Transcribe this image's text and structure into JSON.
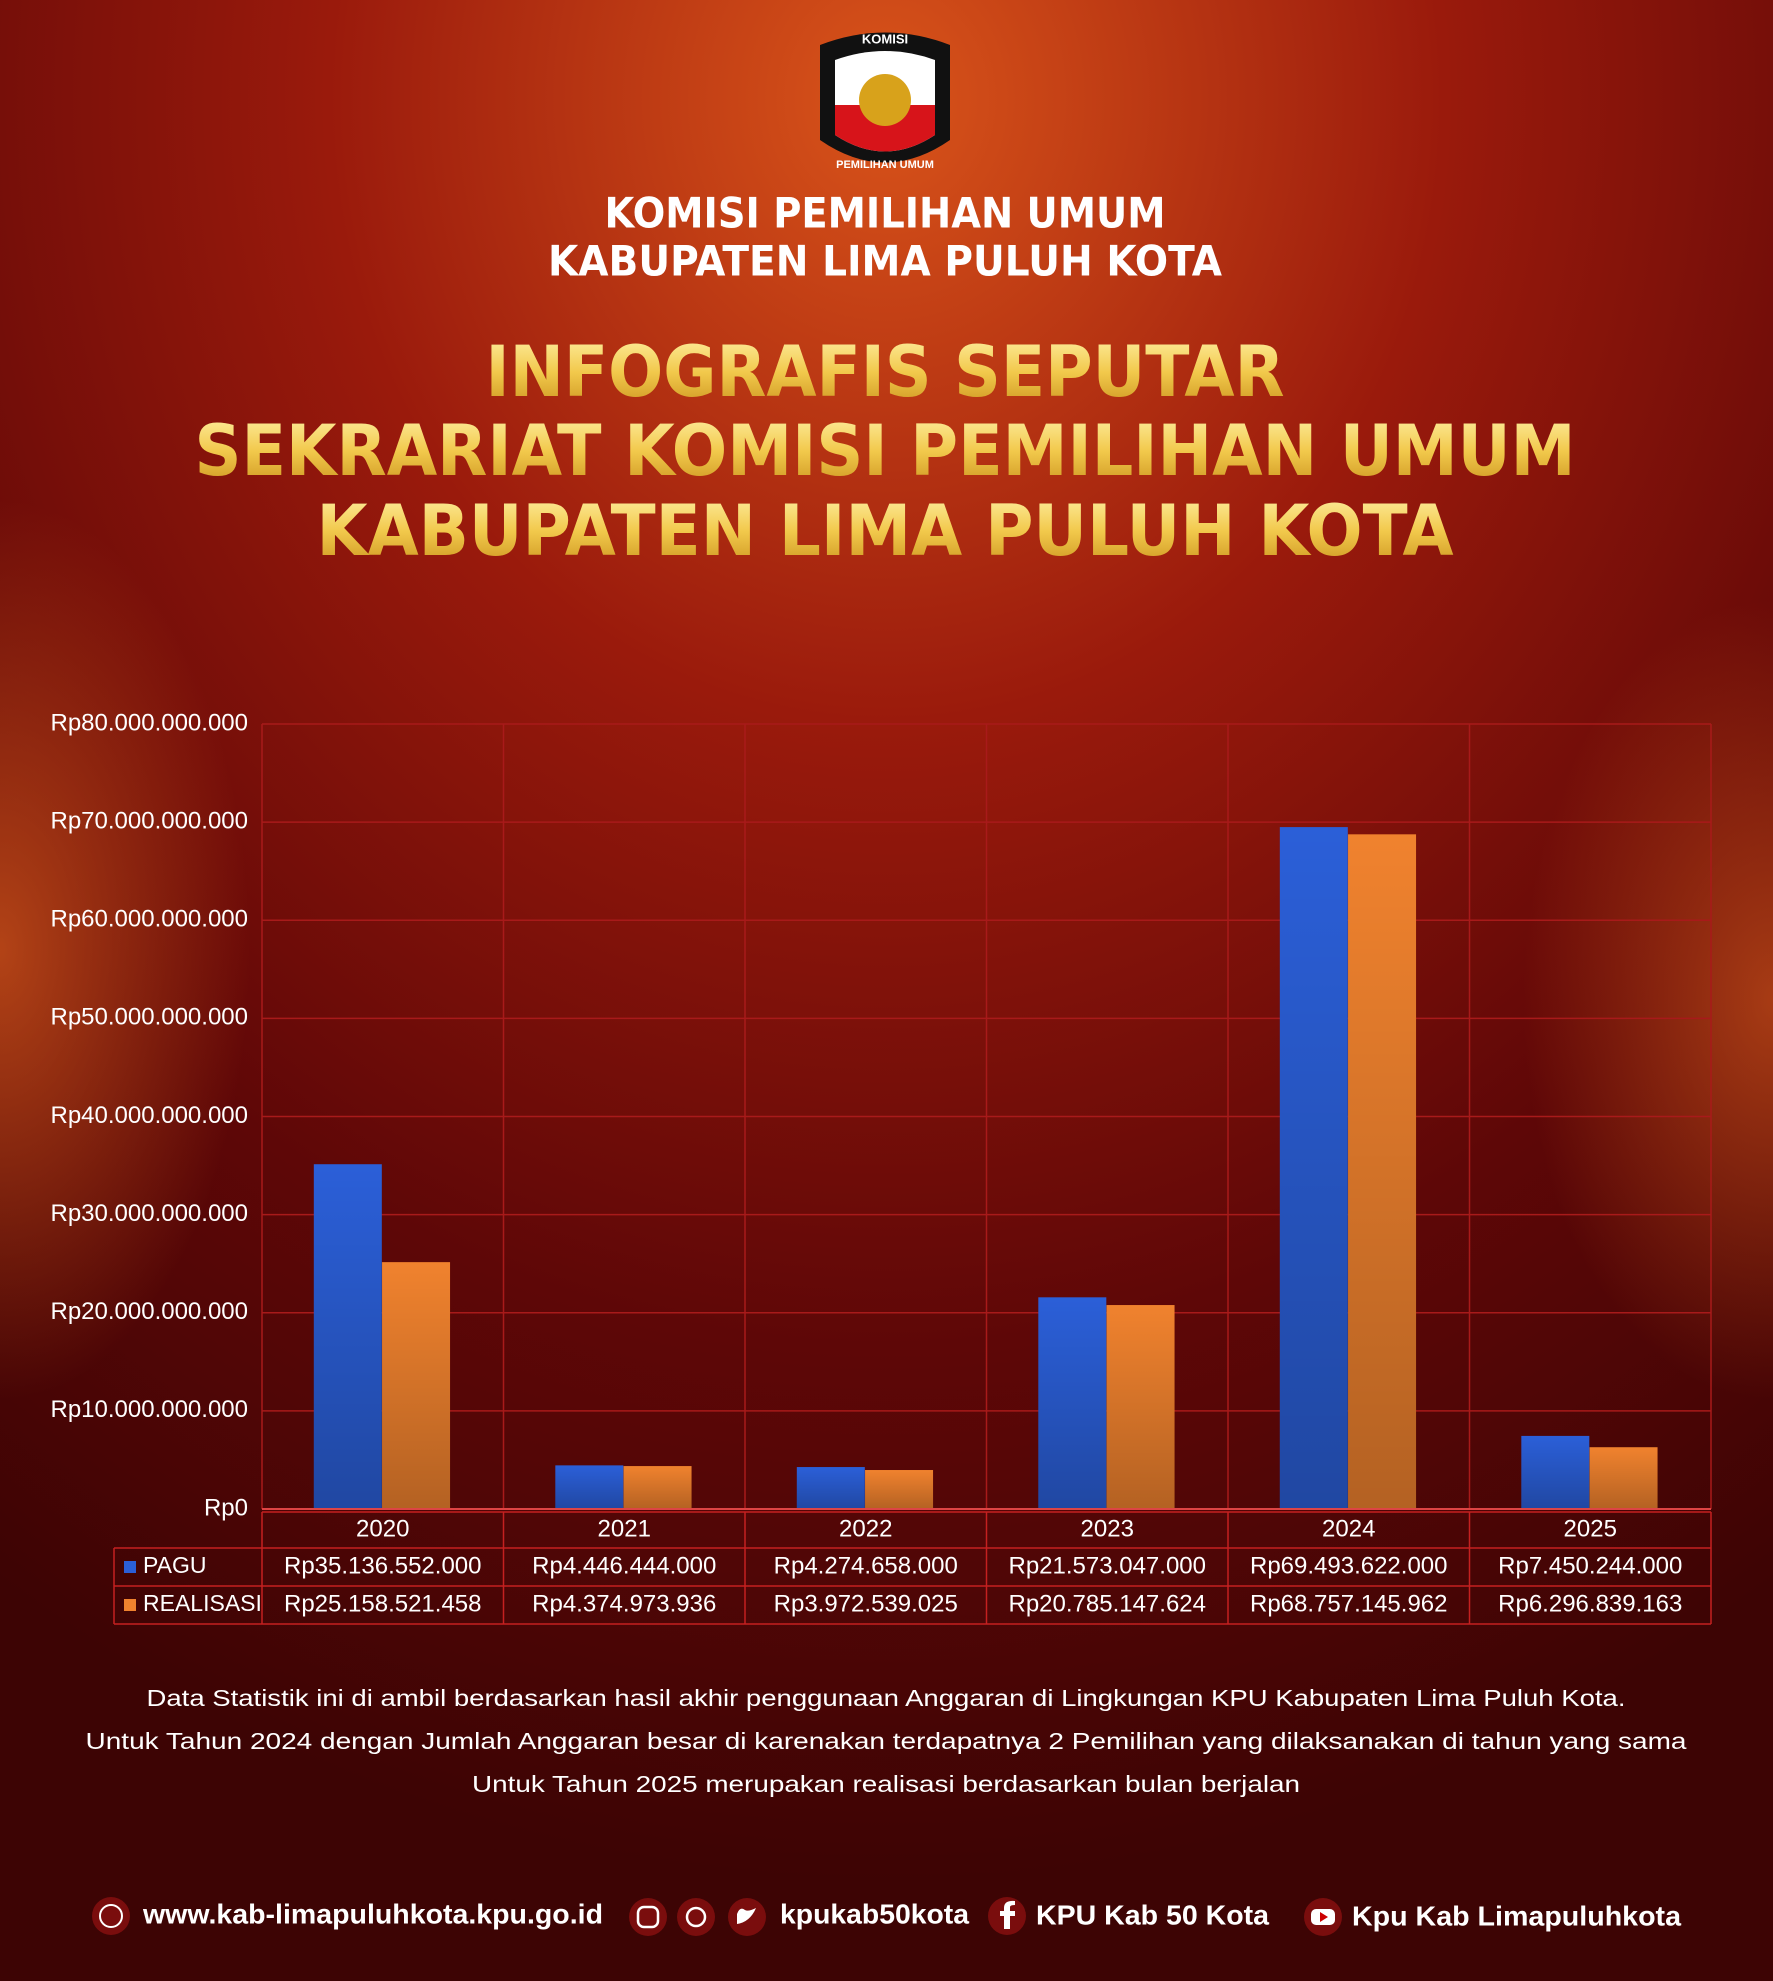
{
  "header": {
    "org_line1": "KOMISI PEMILIHAN UMUM",
    "org_line2": "KABUPATEN LIMA PULUH KOTA",
    "logo_text_top": "KOMISI",
    "logo_text_bottom": "PEMILIHAN UMUM"
  },
  "chart_data": {
    "type": "bar",
    "title": [
      "INFOGRAFIS SEPUTAR",
      "SEKRARIAT KOMISI PEMILIHAN UMUM",
      "KABUPATEN LIMA PULUH KOTA"
    ],
    "categories": [
      "2020",
      "2021",
      "2022",
      "2023",
      "2024",
      "2025"
    ],
    "series": [
      {
        "name": "PAGU",
        "color": "#2b5fd8",
        "values": [
          35136552000,
          4446444000,
          4274658000,
          21573047000,
          69493622000,
          7450244000
        ],
        "value_labels": [
          "Rp35.136.552.000",
          "Rp4.446.444.000",
          "Rp4.274.658.000",
          "Rp21.573.047.000",
          "Rp69.493.622.000",
          "Rp7.450.244.000"
        ]
      },
      {
        "name": "REALISASI",
        "color": "#f0822e",
        "values": [
          25158521458,
          4374973936,
          3972539025,
          20785147624,
          68757145962,
          6296839163
        ],
        "value_labels": [
          "Rp25.158.521.458",
          "Rp4.374.973.936",
          "Rp3.972.539.025",
          "Rp20.785.147.624",
          "Rp68.757.145.962",
          "Rp6.296.839.163"
        ]
      }
    ],
    "ylim": [
      0,
      80000000000
    ],
    "yticks": [
      {
        "value": 0,
        "label": "Rp0"
      },
      {
        "value": 10000000000,
        "label": "Rp10.000.000.000"
      },
      {
        "value": 20000000000,
        "label": "Rp20.000.000.000"
      },
      {
        "value": 30000000000,
        "label": "Rp30.000.000.000"
      },
      {
        "value": 40000000000,
        "label": "Rp40.000.000.000"
      },
      {
        "value": 50000000000,
        "label": "Rp50.000.000.000"
      },
      {
        "value": 60000000000,
        "label": "Rp60.000.000.000"
      },
      {
        "value": 70000000000,
        "label": "Rp70.000.000.000"
      },
      {
        "value": 80000000000,
        "label": "Rp80.000.000.000"
      }
    ],
    "grid": true
  },
  "notes": [
    "Data Statistik ini di ambil berdasarkan hasil akhir penggunaan Anggaran di Lingkungan KPU Kabupaten Lima Puluh Kota.",
    "Untuk Tahun 2024 dengan Jumlah Anggaran besar di karenakan terdapatnya 2 Pemilihan yang dilaksanakan di tahun yang sama",
    "Untuk Tahun 2025 merupakan realisasi berdasarkan bulan berjalan"
  ],
  "footer": {
    "website": "www.kab-limapuluhkota.kpu.go.id",
    "social": "kpukab50kota",
    "facebook": "KPU Kab 50 Kota",
    "youtube": "Kpu Kab Limapuluhkota"
  }
}
